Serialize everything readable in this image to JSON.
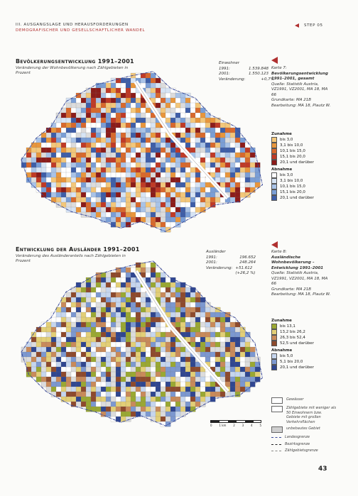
{
  "header": {
    "section": "III. Ausgangslage und Herausforderungen",
    "subtitle": "Demografischer und gesellschaftlicher Wandel",
    "step": "Step 05"
  },
  "maps": [
    {
      "title": "Bevölkerungsentwicklung 1991–2001",
      "subtitle": "Veränderung der Wohnbevölkerung nach Zählgebieten in Prozent",
      "stats": {
        "heading": "Einwohner",
        "rows": [
          [
            "1991:",
            "1.539.848"
          ],
          [
            "2001:",
            "1.550.123"
          ],
          [
            "Veränderung:",
            "+0,7%"
          ]
        ]
      },
      "caption": {
        "number": "Karte 7:",
        "title": "Bevölkerungsentwicklung 1991–2001, gesamt",
        "source": "Quelle: Statistik Austria, VZ1991, VZ2001, MA 18, MA 66",
        "base": "Grundkarte: MA 21B",
        "author": "Bearbeitung: MA 18, Plautz W."
      },
      "legend": [
        {
          "title": "Zunahme",
          "items": [
            {
              "label": "bis 3,0",
              "color": "#f3c77a"
            },
            {
              "label": "3,1 bis 10,0",
              "color": "#e8963c"
            },
            {
              "label": "10,1 bis 15,0",
              "color": "#d8692c"
            },
            {
              "label": "15,1 bis 20,0",
              "color": "#c03a26"
            },
            {
              "label": "20,1 und darüber",
              "color": "#8c1c1a"
            }
          ]
        },
        {
          "title": "Abnahme",
          "items": [
            {
              "label": "bis 3,0",
              "color": "#ffffff"
            },
            {
              "label": "3,1 bis 10,0",
              "color": "#d7e4f4"
            },
            {
              "label": "10,1 bis 15,0",
              "color": "#a9c3e7"
            },
            {
              "label": "15,1 bis 20,0",
              "color": "#7a9ed6"
            },
            {
              "label": "20,1 und darüber",
              "color": "#3e5ea8"
            }
          ]
        }
      ]
    },
    {
      "title": "Entwicklung der Ausländer 1991–2001",
      "subtitle": "Veränderung des Ausländeranteils nach Zählgebieten in Prozent",
      "stats": {
        "heading": "Ausländer",
        "rows": [
          [
            "1991:",
            "196.652"
          ],
          [
            "2001:",
            "248.264"
          ],
          [
            "Veränderung:",
            "+51.612 (+26,2 %)"
          ]
        ]
      },
      "caption": {
        "number": "Karte 8:",
        "title": "Ausländische Wohnbevölkerung – Entwicklung 1991–2001",
        "source": "Quelle: Statistik Austria, VZ1991, VZ2001, MA 18, MA 66",
        "base": "Grundkarte: MA 21B",
        "author": "Bearbeitung: MA 18, Plautz W."
      },
      "legend": [
        {
          "title": "Zunahme",
          "items": [
            {
              "label": "bis 13,1",
              "color": "#9aa832"
            },
            {
              "label": "13,2 bis 26,2",
              "color": "#e3cf76"
            },
            {
              "label": "26,3 bis 52,4",
              "color": "#c98a5a"
            },
            {
              "label": "52,5 und darüber",
              "color": "#8e4a2c"
            }
          ]
        },
        {
          "title": "Abnahme",
          "items": [
            {
              "label": "bis 5,0",
              "color": "#c6d6ee"
            },
            {
              "label": "5,1 bis 20,0",
              "color": "#7c98d0"
            },
            {
              "label": "20,1 und darüber",
              "color": "#2f4690"
            }
          ]
        }
      ]
    }
  ],
  "map_legend": [
    {
      "label": "Gewässer",
      "kind": "box",
      "color": "#ffffff"
    },
    {
      "label": "Zählgebiete mit weniger als 50 Einwohnern bzw. Gebiete mit großen Verkehrsflächen",
      "kind": "box",
      "color": "#ffffff"
    },
    {
      "label": "unbebautes Gebiet",
      "kind": "box",
      "color": "#cfcfcf"
    },
    {
      "label": "Landesgrenze",
      "kind": "line",
      "color": "#3a4a9a"
    },
    {
      "label": "Bezirksgrenze",
      "kind": "line",
      "color": "#222222"
    },
    {
      "label": "Zählgebietsgrenze",
      "kind": "line",
      "color": "#888888"
    }
  ],
  "scale": [
    "0",
    "1 km",
    "2",
    "3",
    "4",
    "5"
  ],
  "page_number": "43"
}
